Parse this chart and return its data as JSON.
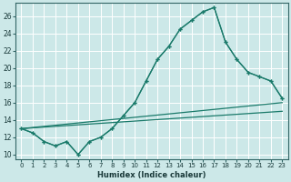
{
  "bg_color": "#cce8e8",
  "grid_color": "#ffffff",
  "line_color": "#1a7a6a",
  "xlabel": "Humidex (Indice chaleur)",
  "yticks": [
    10,
    12,
    14,
    16,
    18,
    20,
    22,
    24,
    26
  ],
  "xticks": [
    0,
    1,
    2,
    3,
    4,
    5,
    6,
    7,
    8,
    9,
    10,
    11,
    12,
    13,
    14,
    15,
    16,
    17,
    18,
    19,
    20,
    21,
    22,
    23
  ],
  "xlim": [
    -0.5,
    23.5
  ],
  "ylim": [
    9.5,
    27.5
  ],
  "c1x": [
    0,
    1,
    2,
    3,
    4,
    5,
    6,
    7,
    8,
    9,
    10,
    11,
    12,
    13,
    14,
    15,
    16,
    17,
    18,
    19,
    20,
    21,
    22,
    23
  ],
  "c1y": [
    13.0,
    12.5,
    11.5,
    11.0,
    11.5,
    10.0,
    11.5,
    12.0,
    13.0,
    14.5,
    16.0,
    18.5,
    21.0,
    22.5,
    24.5,
    25.5,
    26.5,
    27.0,
    23.0,
    21.0,
    19.5,
    19.0,
    18.5,
    16.5
  ],
  "c2x": [
    0,
    1,
    2,
    3,
    4,
    5,
    6,
    7,
    8,
    9,
    10,
    11,
    12,
    13,
    14,
    15,
    16,
    17,
    18,
    19,
    20,
    21,
    22,
    23
  ],
  "c2y": [
    13.0,
    12.5,
    11.5,
    11.0,
    11.5,
    10.0,
    11.5,
    12.0,
    13.0,
    14.5,
    16.0,
    18.5,
    21.0,
    22.5,
    24.5,
    25.5,
    26.5,
    27.0,
    23.0,
    21.0,
    19.5,
    19.0,
    18.5,
    16.5
  ],
  "sl1x": [
    0,
    23
  ],
  "sl1y": [
    13.0,
    16.0
  ],
  "sl2x": [
    0,
    23
  ],
  "sl2y": [
    13.0,
    15.0
  ]
}
